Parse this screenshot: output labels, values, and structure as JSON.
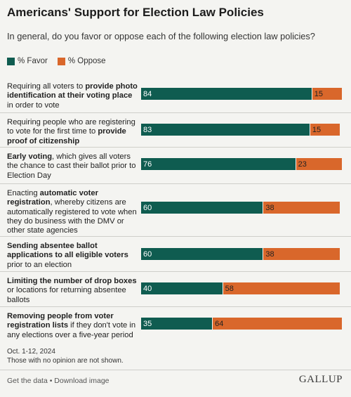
{
  "header": {
    "title": "Americans' Support for Election Law Policies",
    "subtitle": "In general, do you favor or oppose each of the following election law policies?"
  },
  "colors": {
    "favor": "#0f5c50",
    "oppose": "#d9672b"
  },
  "chart_data": {
    "type": "bar",
    "orientation": "horizontal",
    "stacked": true,
    "title": "Americans' Support for Election Law Policies",
    "series": [
      {
        "name": "% Favor",
        "values": [
          84,
          83,
          76,
          60,
          60,
          40,
          35
        ]
      },
      {
        "name": "% Oppose",
        "values": [
          15,
          15,
          23,
          38,
          38,
          58,
          64
        ]
      }
    ],
    "categories": [
      [
        {
          "t": "Requiring all voters to ",
          "b": false
        },
        {
          "t": "provide photo identification at their voting place",
          "b": true
        },
        {
          "t": " in order to vote",
          "b": false
        }
      ],
      [
        {
          "t": "Requiring people who are registering to vote for the first time to ",
          "b": false
        },
        {
          "t": "provide proof of citizenship",
          "b": true
        }
      ],
      [
        {
          "t": "Early voting",
          "b": true
        },
        {
          "t": ", which gives all voters the chance to cast their ballot prior to Election Day",
          "b": false
        }
      ],
      [
        {
          "t": "Enacting ",
          "b": false
        },
        {
          "t": "automatic voter registration",
          "b": true
        },
        {
          "t": ", whereby citizens are automatically registered to vote when they do business with the DMV or other state agencies",
          "b": false
        }
      ],
      [
        {
          "t": "Sending absentee ballot applications to all eligible voters",
          "b": true
        },
        {
          "t": " prior to an election",
          "b": false
        }
      ],
      [
        {
          "t": "Limiting the number of drop boxes",
          "b": true
        },
        {
          "t": " or locations for returning absentee ballots",
          "b": false
        }
      ],
      [
        {
          "t": "Removing people from voter registration lists",
          "b": true
        },
        {
          "t": " if they don't vote in any elections over a five-year period",
          "b": false
        }
      ]
    ],
    "xlim": [
      0,
      100
    ],
    "legend": "top-left",
    "grid": false
  },
  "notes": {
    "date": "Oct. 1-12, 2024",
    "no_opinion": "Those with no opinion are not shown."
  },
  "footer": {
    "links": "Get the data • Download image",
    "brand": "GALLUP"
  }
}
